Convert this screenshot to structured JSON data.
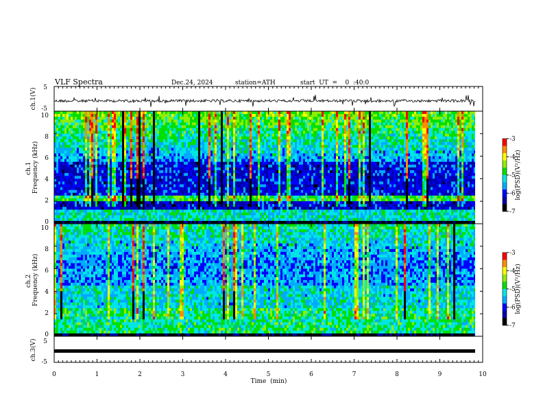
{
  "header": {
    "title": "VLF  Spectra",
    "date": "Dec.24, 2024",
    "station": "station=ATH",
    "start_ut": "start  UT  =    0  :40:0"
  },
  "colors": {
    "colormap": [
      "#000000",
      "#0000a8",
      "#0000ff",
      "#00aaff",
      "#00e5e5",
      "#00e000",
      "#90ee00",
      "#ffff00",
      "#ff8c00",
      "#ff0000",
      "#ffffff"
    ]
  },
  "chart_data": [
    {
      "type": "line",
      "name": "ch1-waveform",
      "ylabel": "ch.1(V)",
      "ylim": [
        -5,
        5
      ],
      "yticks": [
        "5",
        "-5"
      ],
      "xlim": [
        0,
        10
      ],
      "baseline": 0
    },
    {
      "type": "heatmap",
      "name": "ch1-spectrogram",
      "ylabel": "ch.1\nFrequency (kHz)",
      "ylim": [
        0,
        10
      ],
      "yticks": [
        "10",
        "8",
        "6",
        "4",
        "2",
        "0"
      ],
      "xlim": [
        0,
        10
      ],
      "colorbar": {
        "label": "log(PSD)(V²/Hz)",
        "range": [
          -7,
          -3
        ],
        "ticks": [
          "-3",
          "-4",
          "-5",
          "-6",
          "-7"
        ]
      }
    },
    {
      "type": "heatmap",
      "name": "ch2-spectrogram",
      "ylabel": "ch.2\nFrequency (kHz)",
      "ylim": [
        0,
        10
      ],
      "yticks": [
        "10",
        "8",
        "6",
        "4",
        "2",
        "0"
      ],
      "xlim": [
        0,
        10
      ],
      "colorbar": {
        "label": "log(PSD)(V²/Hz)",
        "range": [
          -7,
          -3
        ],
        "ticks": [
          "-3",
          "-4",
          "-5",
          "-6",
          "-7"
        ]
      }
    },
    {
      "type": "line",
      "name": "ch3-waveform",
      "ylabel": "ch.3(V)",
      "ylim": [
        -5,
        5
      ],
      "yticks": [
        "5",
        "-5"
      ],
      "xlim": [
        0,
        10
      ],
      "baseline": 0
    }
  ],
  "xaxis": {
    "label": "Time  (min)",
    "ticks": [
      "0",
      "1",
      "2",
      "3",
      "4",
      "5",
      "6",
      "7",
      "8",
      "9",
      "10"
    ]
  }
}
